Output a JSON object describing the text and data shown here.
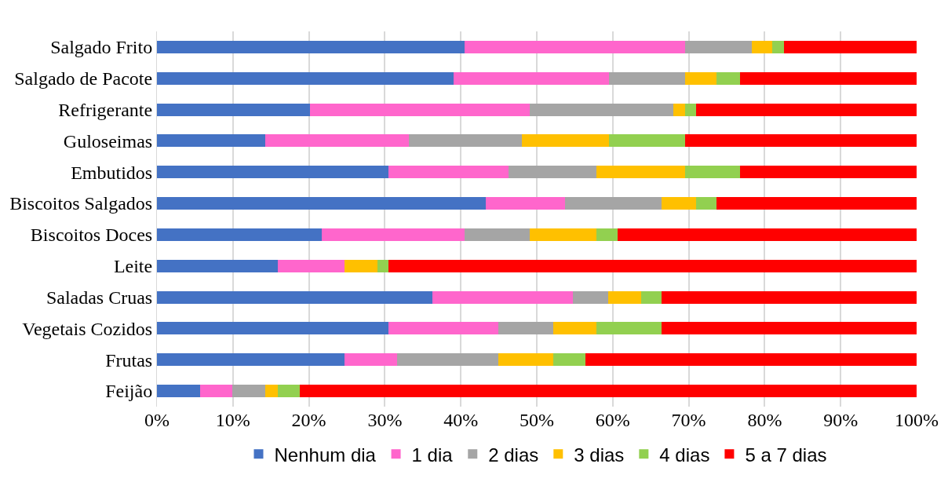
{
  "chart_data": {
    "type": "bar",
    "orientation": "horizontal",
    "stacked": true,
    "categories": [
      "Salgado Frito",
      "Salgado de Pacote",
      "Refrigerante",
      "Guloseimas",
      "Embutidos",
      "Biscoitos Salgados",
      "Biscoitos Doces",
      "Leite",
      "Saladas Cruas",
      "Vegetais Cozidos",
      "Frutas",
      "Feijão"
    ],
    "series": [
      {
        "name": "Nenhum dia",
        "color": "#4472c4",
        "values": [
          40.5,
          39,
          20.1,
          14.3,
          30.5,
          43.3,
          21.7,
          15.9,
          36.3,
          30.5,
          24.7,
          5.7
        ]
      },
      {
        "name": "1 dia",
        "color": "#ff66cc",
        "values": [
          29,
          20.5,
          29,
          18.9,
          15.8,
          10.4,
          18.8,
          8.8,
          18.5,
          14.4,
          6.9,
          4.2
        ]
      },
      {
        "name": "2 dias",
        "color": "#a5a5a5",
        "values": [
          8.8,
          10,
          18.9,
          14.8,
          11.5,
          12.7,
          8.6,
          0,
          4.6,
          7.3,
          13.3,
          4.4
        ]
      },
      {
        "name": "3 dias",
        "color": "#ffc000",
        "values": [
          2.7,
          4.2,
          1.5,
          11.5,
          11.7,
          4.6,
          8.7,
          4.3,
          4.3,
          5.7,
          7.3,
          1.6
        ]
      },
      {
        "name": "4 dias",
        "color": "#92d050",
        "values": [
          1.5,
          3.1,
          1.5,
          10,
          7.3,
          2.7,
          2.8,
          1.5,
          2.7,
          8.5,
          4.2,
          2.9
        ]
      },
      {
        "name": "5 a 7 dias",
        "color": "#ff0000",
        "values": [
          17.5,
          23.2,
          29,
          30.5,
          23.2,
          26.3,
          39.4,
          69.5,
          33.6,
          33.6,
          43.6,
          81.2
        ]
      }
    ],
    "xlim": [
      0,
      100
    ],
    "xticks": [
      {
        "value": 0,
        "label": "0%"
      },
      {
        "value": 10,
        "label": "10%"
      },
      {
        "value": 20,
        "label": "20%"
      },
      {
        "value": 30,
        "label": "30%"
      },
      {
        "value": 40,
        "label": "40%"
      },
      {
        "value": 50,
        "label": "50%"
      },
      {
        "value": 60,
        "label": "60%"
      },
      {
        "value": 70,
        "label": "70%"
      },
      {
        "value": 80,
        "label": "80%"
      },
      {
        "value": 90,
        "label": "90%"
      },
      {
        "value": 100,
        "label": "100%"
      }
    ],
    "grid": "x",
    "legend": "bottom"
  }
}
